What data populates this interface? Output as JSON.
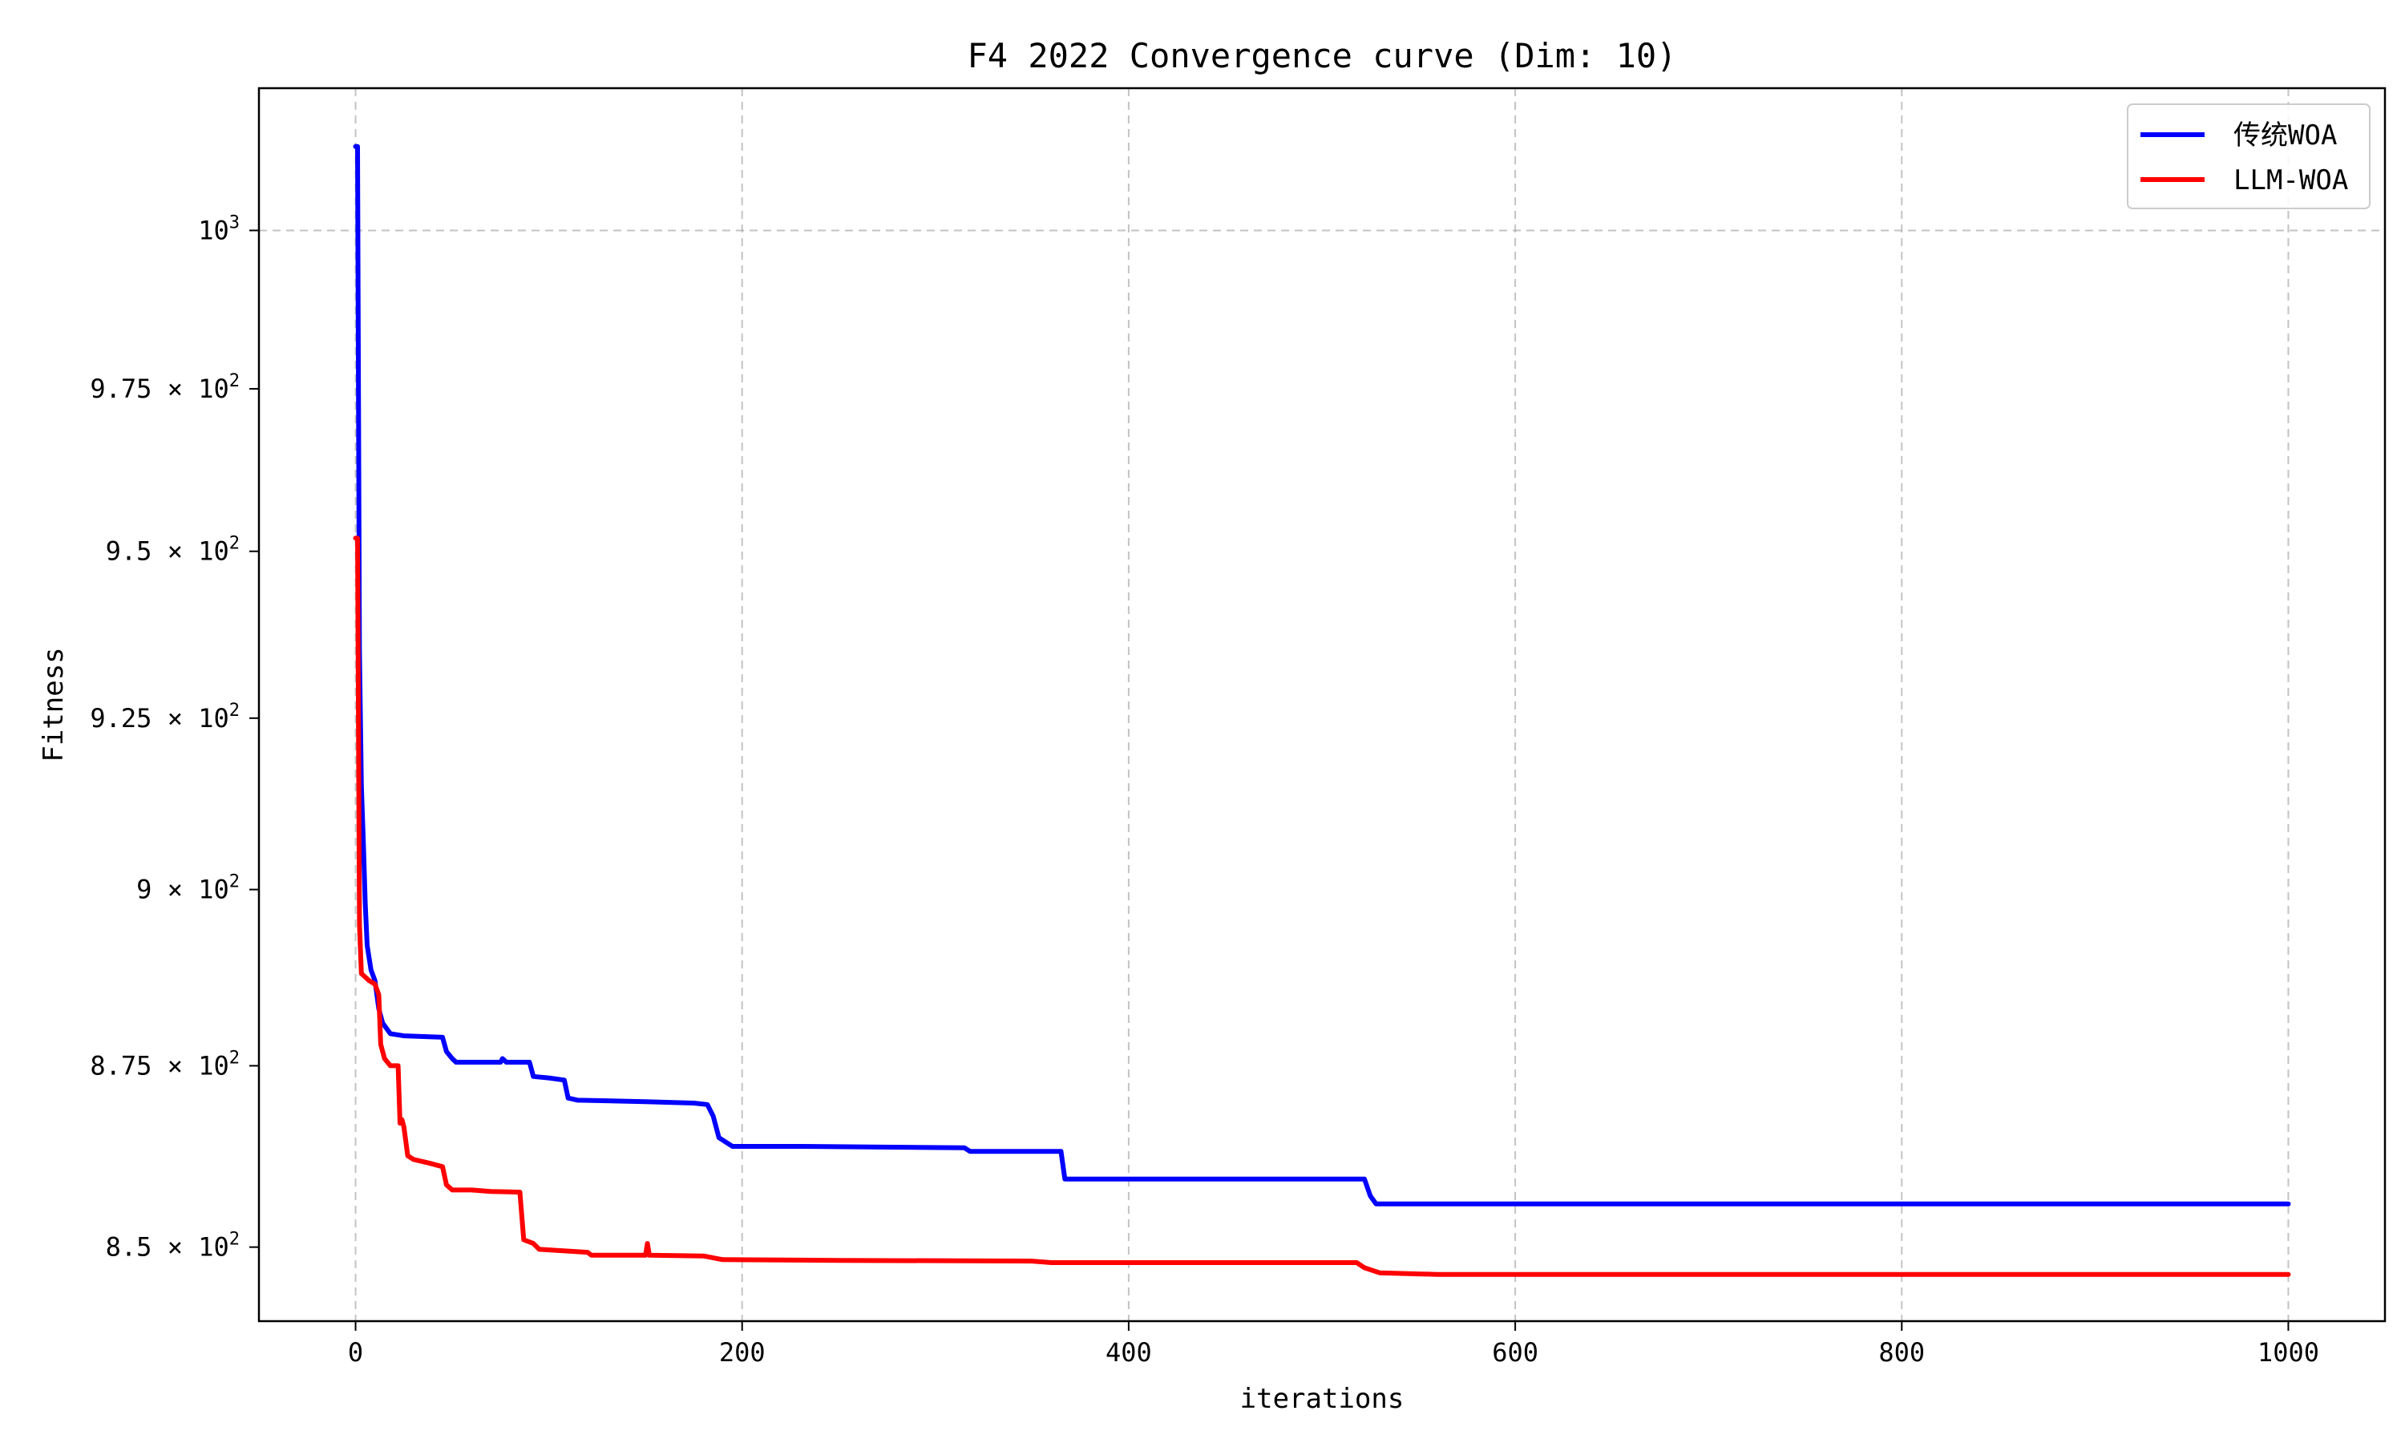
{
  "chart_data": {
    "type": "line",
    "title": "F4 2022 Convergence curve (Dim: 10)",
    "xlabel": "iterations",
    "ylabel": "Fitness",
    "xlim": [
      -50,
      1050
    ],
    "ylim": [
      840,
      1023
    ],
    "yscale": "log",
    "grid": true,
    "legend_position": "top-right",
    "x_ticks": [
      0,
      200,
      400,
      600,
      800,
      1000
    ],
    "x_tick_labels": [
      "0",
      "200",
      "400",
      "600",
      "800",
      "1000"
    ],
    "y_ticks": [
      {
        "value": 850,
        "mantissa": "8.5",
        "exponent": "2"
      },
      {
        "value": 875,
        "mantissa": "8.75",
        "exponent": "2"
      },
      {
        "value": 900,
        "mantissa": "9",
        "exponent": "2"
      },
      {
        "value": 925,
        "mantissa": "9.25",
        "exponent": "2"
      },
      {
        "value": 950,
        "mantissa": "9.5",
        "exponent": "2"
      },
      {
        "value": 975,
        "mantissa": "9.75",
        "exponent": "2"
      },
      {
        "value": 1000,
        "mantissa": "",
        "exponent": "3"
      }
    ],
    "series": [
      {
        "name": "传统WOA",
        "color": "#0000ff",
        "points": [
          [
            0,
            1013.5
          ],
          [
            1,
            1013.5
          ],
          [
            2,
            935
          ],
          [
            3,
            915
          ],
          [
            4,
            907
          ],
          [
            5,
            898
          ],
          [
            6,
            892
          ],
          [
            8,
            888.5
          ],
          [
            10,
            887
          ],
          [
            12,
            883
          ],
          [
            14,
            881
          ],
          [
            18,
            879.5
          ],
          [
            25,
            879.2
          ],
          [
            45,
            879
          ],
          [
            47,
            877
          ],
          [
            50,
            876
          ],
          [
            52,
            875.5
          ],
          [
            60,
            875.5
          ],
          [
            75,
            875.5
          ],
          [
            76,
            876
          ],
          [
            78,
            875.5
          ],
          [
            90,
            875.5
          ],
          [
            92,
            873.5
          ],
          [
            100,
            873.3
          ],
          [
            108,
            873
          ],
          [
            110,
            870.5
          ],
          [
            115,
            870.2
          ],
          [
            150,
            870
          ],
          [
            175,
            869.8
          ],
          [
            182,
            869.6
          ],
          [
            185,
            868
          ],
          [
            188,
            865
          ],
          [
            195,
            863.8
          ],
          [
            230,
            863.8
          ],
          [
            315,
            863.6
          ],
          [
            318,
            863.1
          ],
          [
            365,
            863.1
          ],
          [
            367,
            859.3
          ],
          [
            400,
            859.3
          ],
          [
            522,
            859.3
          ],
          [
            525,
            857
          ],
          [
            528,
            855.9
          ],
          [
            600,
            855.9
          ],
          [
            1000,
            855.9
          ]
        ]
      },
      {
        "name": "LLM-WOA",
        "color": "#ff0000",
        "points": [
          [
            0,
            952
          ],
          [
            1,
            952
          ],
          [
            2,
            895
          ],
          [
            3,
            888
          ],
          [
            5,
            887.5
          ],
          [
            7,
            887
          ],
          [
            10,
            886.5
          ],
          [
            12,
            885
          ],
          [
            13,
            878
          ],
          [
            15,
            876
          ],
          [
            18,
            875
          ],
          [
            22,
            875
          ],
          [
            23,
            867
          ],
          [
            24,
            867.5
          ],
          [
            25,
            866.5
          ],
          [
            27,
            862.5
          ],
          [
            30,
            862
          ],
          [
            38,
            861.5
          ],
          [
            45,
            861
          ],
          [
            47,
            858.5
          ],
          [
            50,
            857.8
          ],
          [
            60,
            857.8
          ],
          [
            70,
            857.6
          ],
          [
            85,
            857.5
          ],
          [
            87,
            851
          ],
          [
            92,
            850.5
          ],
          [
            95,
            849.7
          ],
          [
            120,
            849.3
          ],
          [
            122,
            848.9
          ],
          [
            150,
            848.9
          ],
          [
            151,
            850.5
          ],
          [
            152,
            848.9
          ],
          [
            180,
            848.8
          ],
          [
            190,
            848.3
          ],
          [
            250,
            848.2
          ],
          [
            350,
            848.1
          ],
          [
            360,
            847.9
          ],
          [
            400,
            847.9
          ],
          [
            518,
            847.9
          ],
          [
            522,
            847.2
          ],
          [
            530,
            846.5
          ],
          [
            560,
            846.3
          ],
          [
            1000,
            846.3
          ]
        ]
      }
    ]
  }
}
